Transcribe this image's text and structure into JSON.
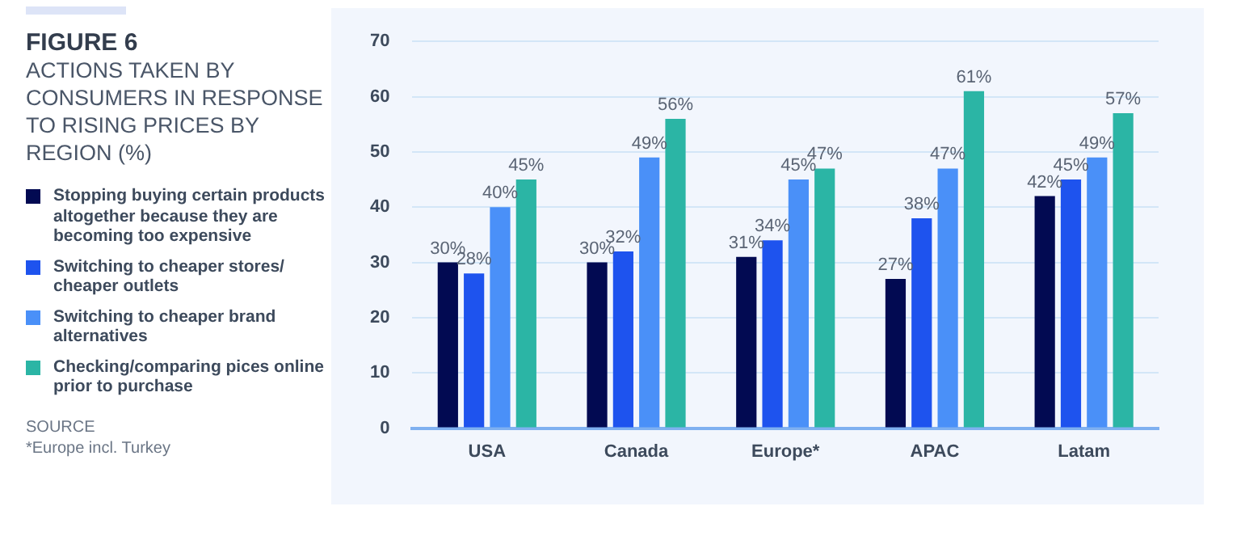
{
  "chart_data": {
    "type": "bar",
    "title": "FIGURE 6",
    "subtitle": "ACTIONS TAKEN BY CONSUMERS IN RESPONSE TO RISING PRICES BY REGION (%)",
    "categories": [
      "USA",
      "Canada",
      "Europe*",
      "APAC",
      "Latam"
    ],
    "series": [
      {
        "name": "Stopping buying certain products altogether because they are becoming too expensive",
        "color": "#020a52",
        "values": [
          30,
          30,
          31,
          27,
          42
        ],
        "value_labels": [
          "30%",
          "30%",
          "31%",
          "27%",
          "42%"
        ]
      },
      {
        "name": "Switching to cheaper stores/ cheaper outlets",
        "color": "#1e53ee",
        "values": [
          28,
          32,
          34,
          38,
          45
        ],
        "value_labels": [
          "28%",
          "32%",
          "34%",
          "38%",
          "45%"
        ]
      },
      {
        "name": "Switching to cheaper brand alternatives",
        "color": "#4a90f8",
        "values": [
          40,
          49,
          45,
          47,
          49
        ],
        "value_labels": [
          "40%",
          "49%",
          "45%",
          "47%",
          "49%"
        ]
      },
      {
        "name": "Checking/comparing pices online prior to purchase",
        "color": "#2bb5a5",
        "values": [
          45,
          56,
          47,
          61,
          57
        ],
        "value_labels": [
          "45%",
          "56%",
          "47%",
          "61%",
          "57%"
        ]
      }
    ],
    "ylim": [
      0,
      70
    ],
    "yticks": [
      0,
      10,
      20,
      30,
      40,
      50,
      60,
      70
    ],
    "grid": "y",
    "legend": "left",
    "annotations": [
      "SOURCE",
      "*Europe incl. Turkey"
    ]
  }
}
